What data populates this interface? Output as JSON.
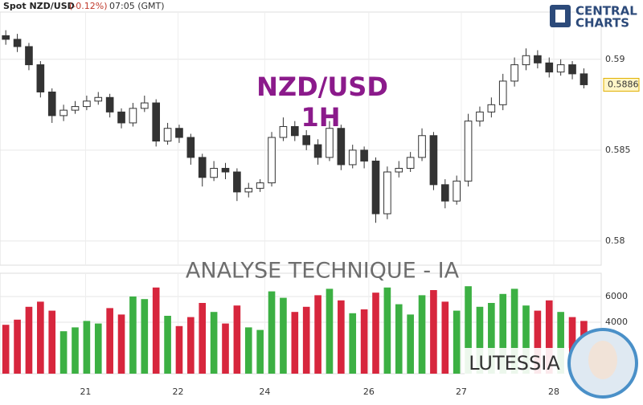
{
  "chart_data": {
    "type": "candlestick",
    "header": {
      "symbol": "Spot NZD/USD",
      "change": "(-0.12%)",
      "time": "07:05 (GMT)"
    },
    "title": "NZD/USD",
    "subtitle": "1H",
    "banner": "ANALYSE TECHNIQUE - IA",
    "brand": "LUTESSIA",
    "logo": [
      "CENTRAL",
      "CHARTS"
    ],
    "last_price": 0.5886,
    "up_color": "#ffffff",
    "down_color": "#333333",
    "wick_color": "#333333",
    "volume_up_color": "#3cb043",
    "volume_down_color": "#d7263d",
    "xlim": [
      -0.5,
      51.5
    ],
    "xticks": [
      {
        "value": 6.9,
        "label": "21"
      },
      {
        "value": 14.9,
        "label": "22"
      },
      {
        "value": 22.4,
        "label": "24"
      },
      {
        "value": 31.4,
        "label": "26"
      },
      {
        "value": 39.4,
        "label": "27"
      },
      {
        "value": 47.4,
        "label": "28"
      }
    ],
    "ylim": [
      0.57867,
      0.5926
    ],
    "yticks": [
      0.58,
      0.585,
      0.59
    ],
    "y2lim": [
      0,
      7812
    ],
    "y2ticks": [
      4000,
      6000
    ],
    "grid": true,
    "open": [
      0.5913,
      0.5911,
      0.5907,
      0.5897,
      0.5882,
      0.5869,
      0.5872,
      0.5874,
      0.5877,
      0.5879,
      0.5871,
      0.5865,
      0.5873,
      0.5876,
      0.5855,
      0.5862,
      0.5857,
      0.5846,
      0.5835,
      0.584,
      0.5838,
      0.5827,
      0.5829,
      0.5832,
      0.5857,
      0.5863,
      0.5858,
      0.5853,
      0.5846,
      0.5862,
      0.5842,
      0.585,
      0.5844,
      0.5815,
      0.5838,
      0.584,
      0.5846,
      0.5858,
      0.5831,
      0.5822,
      0.5833,
      0.5866,
      0.5871,
      0.5875,
      0.5888,
      0.5897,
      0.5902,
      0.5898,
      0.5893,
      0.5897,
      0.5892
    ],
    "high": [
      0.5916,
      0.5914,
      0.5909,
      0.5899,
      0.5884,
      0.5875,
      0.5877,
      0.588,
      0.5882,
      0.5881,
      0.5873,
      0.5876,
      0.588,
      0.5878,
      0.5865,
      0.5864,
      0.5859,
      0.5848,
      0.5844,
      0.5843,
      0.584,
      0.5832,
      0.5834,
      0.586,
      0.5868,
      0.5866,
      0.5861,
      0.5856,
      0.5866,
      0.5864,
      0.5853,
      0.5852,
      0.5846,
      0.5841,
      0.5844,
      0.5849,
      0.5862,
      0.586,
      0.5834,
      0.5836,
      0.587,
      0.5874,
      0.5879,
      0.5892,
      0.5901,
      0.5906,
      0.5905,
      0.5901,
      0.59,
      0.5899,
      0.5895
    ],
    "low": [
      0.5908,
      0.5904,
      0.5894,
      0.5879,
      0.5865,
      0.5866,
      0.587,
      0.5872,
      0.5875,
      0.5868,
      0.5862,
      0.5863,
      0.5871,
      0.5852,
      0.5853,
      0.5854,
      0.5842,
      0.583,
      0.5833,
      0.5834,
      0.5822,
      0.5824,
      0.5827,
      0.583,
      0.5855,
      0.5855,
      0.585,
      0.5842,
      0.5844,
      0.5839,
      0.584,
      0.584,
      0.581,
      0.5812,
      0.5835,
      0.5838,
      0.5844,
      0.5828,
      0.5818,
      0.582,
      0.583,
      0.5863,
      0.5868,
      0.5872,
      0.5885,
      0.5894,
      0.5895,
      0.589,
      0.5891,
      0.5889,
      0.5884
    ],
    "close": [
      0.5911,
      0.5907,
      0.5897,
      0.5882,
      0.5869,
      0.5872,
      0.5874,
      0.5877,
      0.5879,
      0.5871,
      0.5865,
      0.5873,
      0.5876,
      0.5855,
      0.5862,
      0.5857,
      0.5846,
      0.5835,
      0.584,
      0.5838,
      0.5827,
      0.5829,
      0.5832,
      0.5857,
      0.5863,
      0.5858,
      0.5853,
      0.5846,
      0.5862,
      0.5842,
      0.585,
      0.5844,
      0.5815,
      0.5838,
      0.584,
      0.5846,
      0.5858,
      0.5831,
      0.5822,
      0.5833,
      0.5866,
      0.5871,
      0.5875,
      0.5888,
      0.5897,
      0.5902,
      0.5898,
      0.5893,
      0.5897,
      0.5892,
      0.5886
    ],
    "volume": [
      3800,
      4200,
      5200,
      5600,
      4900,
      3300,
      3600,
      4100,
      3900,
      5100,
      4600,
      6000,
      5800,
      6700,
      4500,
      3700,
      4400,
      5500,
      4800,
      3900,
      5300,
      3600,
      3400,
      6400,
      5900,
      4800,
      5200,
      6100,
      6600,
      5700,
      4700,
      5000,
      6300,
      6700,
      5400,
      4600,
      6100,
      6500,
      5600,
      4900,
      6800,
      5200,
      5500,
      6200,
      6600,
      5300,
      4900,
      5700,
      4800,
      4400,
      4100
    ]
  }
}
